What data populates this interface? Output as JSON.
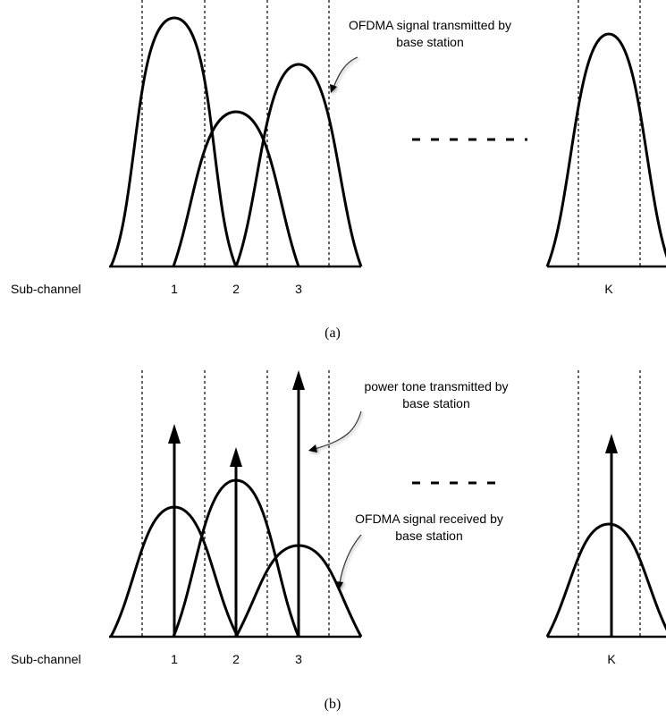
{
  "panel_a": {
    "axis_label": "Sub-channel",
    "channel_labels": [
      "1",
      "2",
      "3",
      "K"
    ],
    "annotation_line1": "OFDMA signal transmitted by",
    "annotation_line2": "base station",
    "caption": "(a)"
  },
  "panel_b": {
    "axis_label": "Sub-channel",
    "channel_labels": [
      "1",
      "2",
      "3",
      "K"
    ],
    "tone_annotation_line1": "power tone transmitted by",
    "tone_annotation_line2": "base station",
    "signal_annotation_line1": "OFDMA signal received by",
    "signal_annotation_line2": "base station",
    "caption": "(b)"
  }
}
